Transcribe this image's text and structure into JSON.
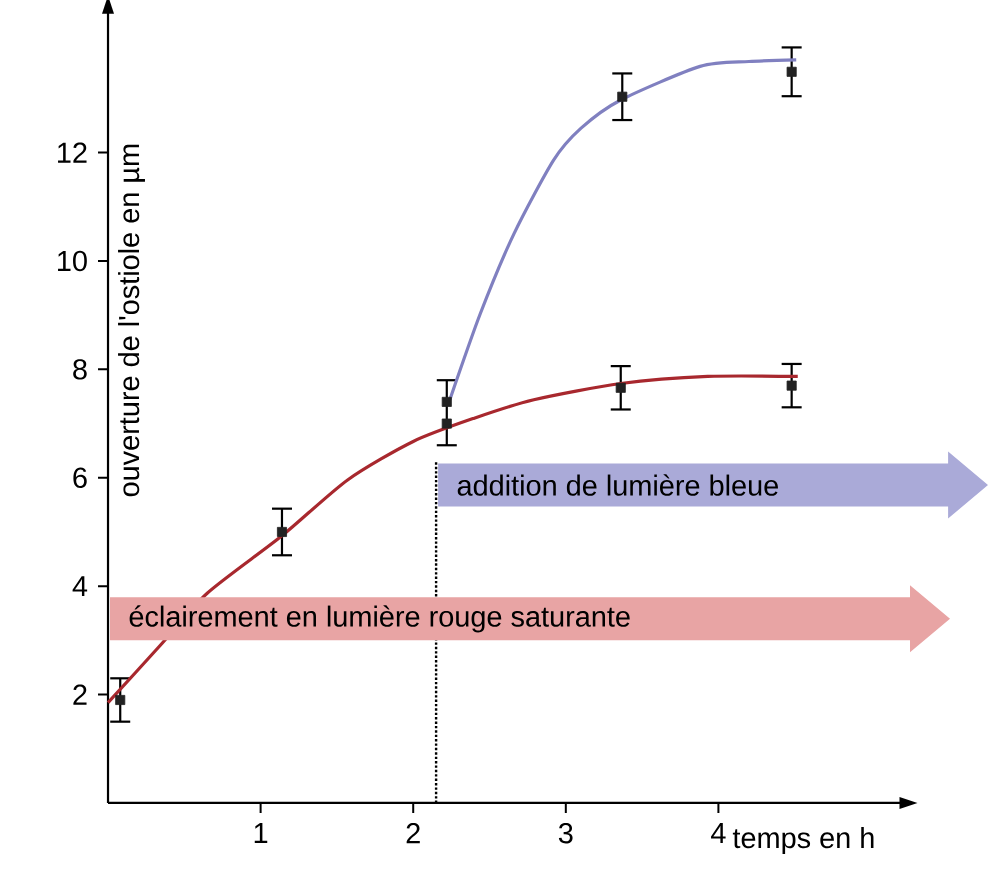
{
  "chart_data": {
    "type": "scatter",
    "xlabel": "temps en h",
    "ylabel": "ouverture de l'ostiole en µm",
    "xlim": [
      0,
      5.2
    ],
    "ylim": [
      0,
      14.6
    ],
    "xticks": [
      1,
      2,
      3,
      4
    ],
    "yticks": [
      2,
      4,
      6,
      8,
      10,
      12
    ],
    "grid": false,
    "series": [
      {
        "color": "#222222",
        "marker": "square",
        "x": [
          0.08,
          1.14,
          2.22,
          3.36,
          4.48
        ],
        "values": [
          1.9,
          5.0,
          7.0,
          7.66,
          7.7
        ],
        "errors": [
          0.4,
          0.43,
          [
            6.6,
            7.8
          ],
          0.4,
          0.4
        ]
      },
      {
        "color": "#222222",
        "marker": "square",
        "x": [
          2.22,
          3.37,
          4.48
        ],
        "values": [
          7.4,
          13.03,
          13.49
        ],
        "errors": [
          null,
          0.43,
          0.45
        ]
      },
      {
        "type": "line",
        "color": "#a8282e",
        "marker": "none",
        "x": [
          0.0,
          0.34,
          0.65,
          1.14,
          1.57,
          2.0,
          2.4,
          2.79,
          3.36,
          3.93,
          4.52
        ],
        "values": [
          1.85,
          2.9,
          3.87,
          4.93,
          5.96,
          6.67,
          7.1,
          7.44,
          7.74,
          7.87,
          7.87
        ]
      },
      {
        "type": "line",
        "color": "#8080c0",
        "marker": "none",
        "x": [
          2.24,
          2.44,
          2.66,
          2.92,
          3.1,
          3.36,
          3.88,
          4.2,
          4.51
        ],
        "values": [
          7.44,
          9.03,
          10.5,
          11.86,
          12.45,
          12.97,
          13.59,
          13.68,
          13.71
        ]
      }
    ],
    "ref_lines": [
      {
        "axis": "x",
        "value": 2.15,
        "line_style": "dotted",
        "color": "#000000"
      }
    ],
    "annotations": [
      "addition de lumière bleue",
      "éclairement en lumière rouge saturante"
    ]
  }
}
